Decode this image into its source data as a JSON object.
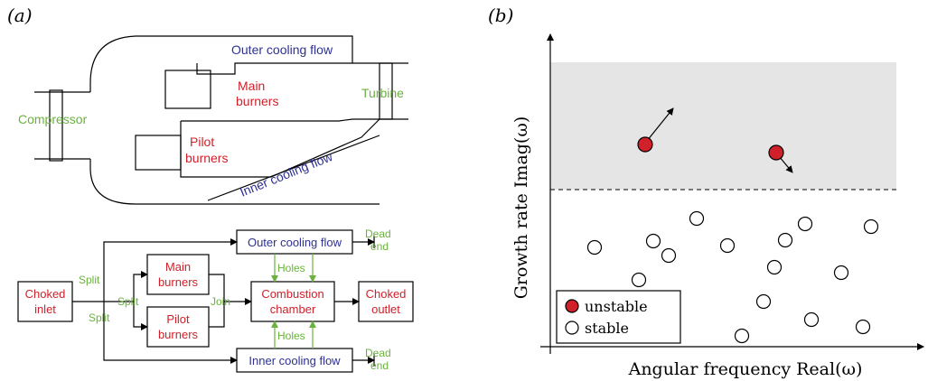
{
  "panel_a": {
    "label": "(a)",
    "combustor": {
      "outer_cooling": "Outer cooling flow",
      "main_burners": [
        "Main",
        "burners"
      ],
      "turbine": "Turbine",
      "compressor": "Compressor",
      "pilot_burners": [
        "Pilot",
        "burners"
      ],
      "inner_cooling": "Inner cooling flow"
    },
    "network": {
      "choked_inlet": [
        "Choked",
        "inlet"
      ],
      "main_burners": [
        "Main",
        "burners"
      ],
      "pilot_burners": [
        "Pilot",
        "burners"
      ],
      "combustion_chamber": [
        "Combustion",
        "chamber"
      ],
      "choked_outlet": [
        "Choked",
        "outlet"
      ],
      "outer_cooling": "Outer cooling flow",
      "inner_cooling": "Inner cooling flow",
      "split": "Split",
      "join": "Join",
      "holes": "Holes",
      "dead_end": [
        "Dead",
        "end"
      ]
    }
  },
  "panel_b": {
    "label": "(b)",
    "xlabel": "Angular frequency Real(ω)",
    "ylabel": "Growth rate Imag(ω)",
    "legend": {
      "unstable": "unstable",
      "stable": "stable"
    }
  },
  "colors": {
    "red": "#d0202a",
    "blue": "#2e3192",
    "green": "#6ab23e",
    "shade": "#e5e5e5"
  }
}
